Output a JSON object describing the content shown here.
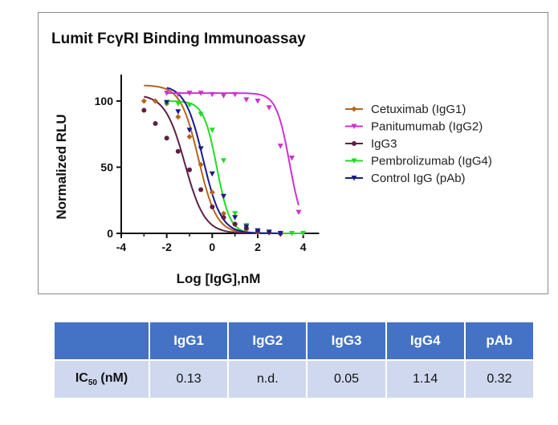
{
  "chart_data": {
    "type": "scatter",
    "title": "Lumit FcγRI Binding Immunoassay",
    "xlabel": "Log [IgG],nM",
    "ylabel": "Normalized RLU",
    "xlim": [
      -4,
      5
    ],
    "ylim": [
      0,
      120
    ],
    "xticks": [
      -4,
      -2,
      0,
      2,
      4
    ],
    "yticks": [
      0,
      50,
      100
    ],
    "legend_position": "right",
    "series": [
      {
        "name": "Cetuximab (IgG1)",
        "color": "#b5651d",
        "marker": "diamond",
        "fit": {
          "top": 112,
          "bottom": 0,
          "logec50": -0.6,
          "hill": -1.1
        },
        "x": [
          -3.0,
          -2.5,
          -2.0,
          -1.5,
          -1.0,
          -0.5,
          0.0,
          0.5,
          1.0,
          1.5,
          2.0,
          2.5,
          3.0
        ],
        "y": [
          100,
          100,
          98,
          88,
          73,
          52,
          31,
          15,
          7,
          3,
          1,
          0.5,
          0
        ]
      },
      {
        "name": "Panitumumab (IgG2)",
        "color": "#cc33cc",
        "marker": "triangle-down",
        "fit": {
          "top": 106,
          "bottom": 0,
          "logec50": 3.4,
          "hill": -1.5
        },
        "x": [
          -2.0,
          -1.5,
          -1.0,
          -0.5,
          0.0,
          0.5,
          1.0,
          1.5,
          2.0,
          2.5,
          3.0,
          3.5,
          3.8
        ],
        "y": [
          106,
          105,
          106,
          106,
          105,
          104,
          105,
          101,
          100,
          95,
          66,
          57,
          16
        ]
      },
      {
        "name": "IgG3",
        "color": "#5e2045",
        "marker": "circle",
        "fit": {
          "top": 105,
          "bottom": 0,
          "logec50": -1.2,
          "hill": -1.0
        },
        "x": [
          -3.0,
          -2.5,
          -2.0,
          -1.5,
          -1.0,
          -0.5,
          0.0,
          0.5,
          1.0,
          1.5,
          2.0,
          2.5,
          3.0
        ],
        "y": [
          93,
          83,
          72,
          62,
          48,
          33,
          20,
          12,
          7,
          4,
          2,
          1,
          0
        ]
      },
      {
        "name": "Pembrolizumab (IgG4)",
        "color": "#22dd22",
        "marker": "triangle-down",
        "fit": {
          "top": 100,
          "bottom": 0,
          "logec50": 0.2,
          "hill": -1.5
        },
        "x": [
          -2.0,
          -1.5,
          -1.0,
          -0.5,
          0.0,
          0.5,
          1.0,
          1.5,
          2.0,
          2.5,
          3.0,
          3.5,
          4.0
        ],
        "y": [
          98,
          98,
          97,
          90,
          78,
          55,
          15,
          6,
          2,
          1,
          0,
          0,
          0
        ]
      },
      {
        "name": "Control IgG (pAb)",
        "color": "#1a1a8c",
        "marker": "triangle-down",
        "fit": {
          "top": 112,
          "bottom": 0,
          "logec50": -0.4,
          "hill": -1.1
        },
        "x": [
          -2.0,
          -1.5,
          -1.0,
          -0.5,
          0.0,
          0.5,
          1.0,
          1.5,
          2.0,
          2.5,
          3.0
        ],
        "y": [
          99,
          92,
          78,
          64,
          45,
          28,
          12,
          5,
          2,
          1,
          0
        ]
      }
    ]
  },
  "table": {
    "headers": [
      "",
      "IgG1",
      "IgG2",
      "IgG3",
      "IgG4",
      "pAb"
    ],
    "row_label_main": "IC",
    "row_label_sub": "50",
    "row_label_unit": " (nM)",
    "values": [
      "0.13",
      "n.d.",
      "0.05",
      "1.14",
      "0.32"
    ]
  }
}
